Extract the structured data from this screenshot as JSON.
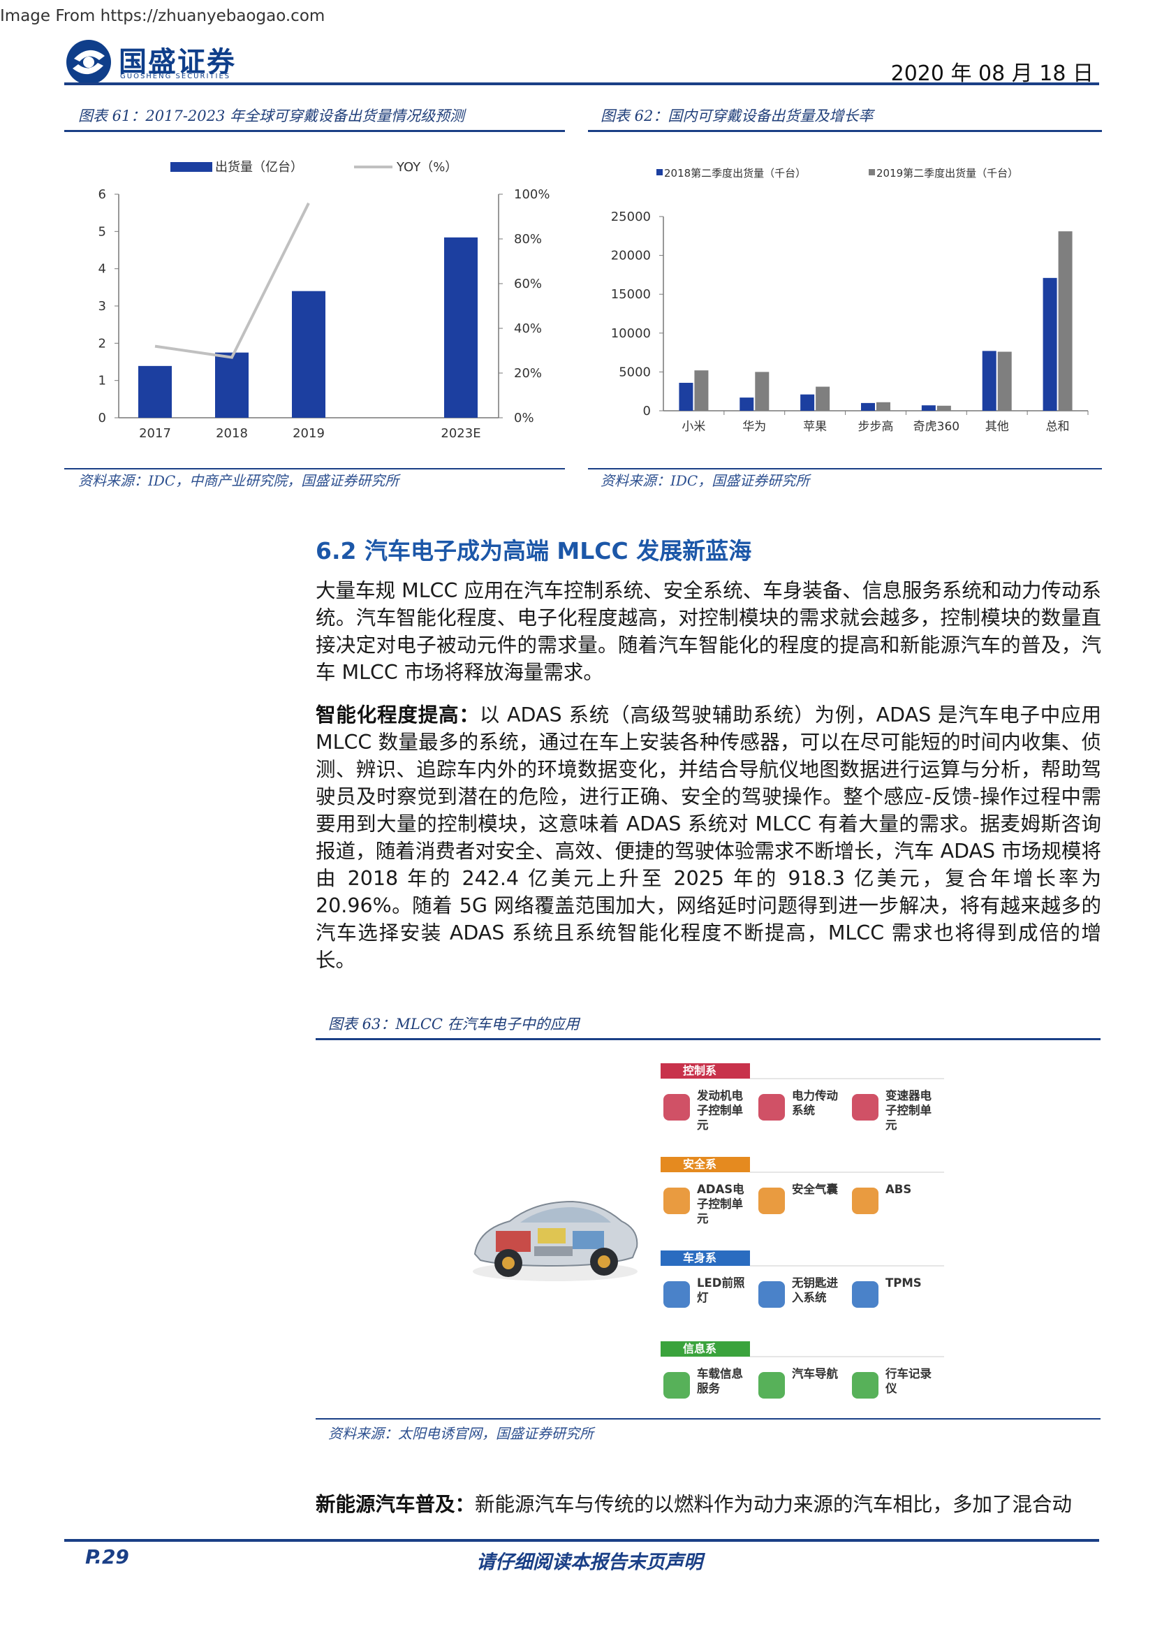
{
  "watermark": "Image From https://zhuanyebaogao.com",
  "header": {
    "company_cn": "国盛证券",
    "company_en": "GUOSHENG SECURITIES",
    "date": "2020 年 08 月 18 日"
  },
  "figure61": {
    "title": "图表 61：2017-2023 年全球可穿戴设备出货量情况级预测",
    "source": "资料来源：IDC，中商产业研究院，国盛证券研究所"
  },
  "figure62": {
    "title": "图表 62：国内可穿戴设备出货量及增长率",
    "source": "资料来源：IDC，国盛证券研究所"
  },
  "figure63": {
    "title": "图表 63：MLCC 在汽车电子中的应用",
    "source": "资料来源：太阳电诱官网，国盛证券研究所",
    "categories": [
      {
        "name": "控制系",
        "color": "#c8324b",
        "items": [
          "发动机电子控制单元",
          "电力传动系统",
          "变速器电子控制单元"
        ]
      },
      {
        "name": "安全系",
        "color": "#e58a1f",
        "items": [
          "ADAS电子控制单元",
          "安全气囊",
          "ABS"
        ]
      },
      {
        "name": "车身系",
        "color": "#2a6cc0",
        "items": [
          "LED前照灯",
          "无钥匙进入系统",
          "TPMS"
        ]
      },
      {
        "name": "信息系",
        "color": "#3aa33c",
        "items": [
          "车载信息服务",
          "汽车导航",
          "行车记录仪"
        ]
      }
    ]
  },
  "section": {
    "title": "6.2 汽车电子成为高端 MLCC 发展新蓝海",
    "p1": "大量车规 MLCC 应用在汽车控制系统、安全系统、车身装备、信息服务系统和动力传动系统。汽车智能化程度、电子化程度越高，对控制模块的需求就会越多，控制模块的数量直接决定对电子被动元件的需求量。随着汽车智能化的程度的提高和新能源汽车的普及，汽车 MLCC 市场将释放海量需求。",
    "p2_lead": "智能化程度提高：",
    "p2": "以 ADAS 系统（高级驾驶辅助系统）为例，ADAS 是汽车电子中应用 MLCC 数量最多的系统，通过在车上安装各种传感器，可以在尽可能短的时间内收集、侦测、辨识、追踪车内外的环境数据变化，并结合导航仪地图数据进行运算与分析，帮助驾驶员及时察觉到潜在的危险，进行正确、安全的驾驶操作。整个感应-反馈-操作过程中需要用到大量的控制模块，这意味着 ADAS 系统对 MLCC 有着大量的需求。据麦姆斯咨询报道，随着消费者对安全、高效、便捷的驾驶体验需求不断增长，汽车 ADAS 市场规模将由 2018 年的 242.4 亿美元上升至 2025 年的 918.3 亿美元，复合年增长率为 20.96%。随着 5G 网络覆盖范围加大，网络延时问题得到进一步解决，将有越来越多的汽车选择安装 ADAS 系统且系统智能化程度不断提高，MLCC 需求也将得到成倍的增长。",
    "p3_lead": "新能源汽车普及：",
    "p3": "新能源汽车与传统的以燃料作为动力来源的汽车相比，多加了混合动"
  },
  "footer": {
    "page": "P.29",
    "disclaimer": "请仔细阅读本报告末页声明"
  },
  "chart_data": [
    {
      "type": "bar",
      "categories": [
        "2017",
        "2018",
        "2019",
        "2023E"
      ],
      "series": [
        {
          "name": "出货量（亿台）",
          "values": [
            1.39,
            1.75,
            3.4,
            4.84
          ],
          "axis": "left",
          "color": "#1c3fa0"
        },
        {
          "name": "YOY（%）",
          "type": "line",
          "values": [
            0.32,
            0.27,
            0.96,
            null
          ],
          "axis": "right",
          "color": "#c0c0c0"
        }
      ],
      "ylim": [
        0,
        6
      ],
      "yticks": [
        "0",
        "1",
        "2",
        "3",
        "4",
        "5",
        "6"
      ],
      "y2lim": [
        0,
        1
      ],
      "y2ticks": [
        "0%",
        "20%",
        "40%",
        "60%",
        "80%",
        "100%"
      ],
      "legend": "top"
    },
    {
      "type": "bar",
      "categories": [
        "小米",
        "华为",
        "苹果",
        "步步高",
        "奇虎360",
        "其他",
        "总和"
      ],
      "series": [
        {
          "name": "2018第二季度出货量（千台）",
          "values": [
            3600,
            1700,
            2100,
            1000,
            700,
            7700,
            17100
          ],
          "color": "#1c3fa0"
        },
        {
          "name": "2019第二季度出货量（千台）",
          "values": [
            5200,
            5000,
            3100,
            1100,
            650,
            7600,
            23100
          ],
          "color": "#7f7f7f"
        }
      ],
      "ylim": [
        0,
        25000
      ],
      "yticks": [
        "0",
        "5000",
        "10000",
        "15000",
        "20000",
        "25000"
      ],
      "legend": "top"
    }
  ]
}
